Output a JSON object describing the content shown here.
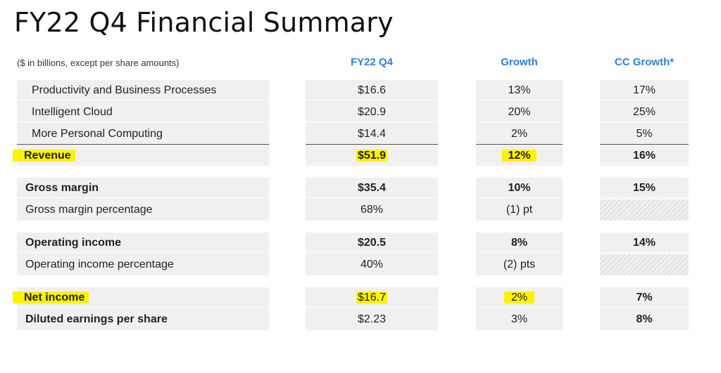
{
  "title": "FY22 Q4 Financial Summary",
  "subtitle": "($ in billions, except per share amounts)",
  "columns": [
    "FY22 Q4",
    "Growth",
    "CC Growth*"
  ],
  "accent_color": "#2f7fd6",
  "highlight_color": "#fff200",
  "groups": [
    {
      "rows": [
        {
          "label": "Productivity and Business Processes",
          "value": "$16.6",
          "growth": "13%",
          "cc": "17%"
        },
        {
          "label": "Intelligent Cloud",
          "value": "$20.9",
          "growth": "20%",
          "cc": "25%"
        },
        {
          "label": "More Personal Computing",
          "value": "$14.4",
          "growth": "2%",
          "cc": "5%"
        },
        {
          "label": "Revenue",
          "value": "$51.9",
          "growth": "12%",
          "cc": "16%"
        }
      ]
    },
    {
      "rows": [
        {
          "label": "Gross margin",
          "value": "$35.4",
          "growth": "10%",
          "cc": "15%"
        },
        {
          "label": "Gross margin percentage",
          "value": "68%",
          "growth": "(1) pt",
          "cc": ""
        }
      ]
    },
    {
      "rows": [
        {
          "label": "Operating income",
          "value": "$20.5",
          "growth": "8%",
          "cc": "14%"
        },
        {
          "label": "Operating income percentage",
          "value": "40%",
          "growth": "(2) pts",
          "cc": ""
        }
      ]
    },
    {
      "rows": [
        {
          "label": "Net income",
          "value": "$16.7",
          "growth": "2%",
          "cc": "7%"
        },
        {
          "label": "Diluted earnings per share",
          "value": "$2.23",
          "growth": "3%",
          "cc": "8%"
        }
      ]
    }
  ]
}
